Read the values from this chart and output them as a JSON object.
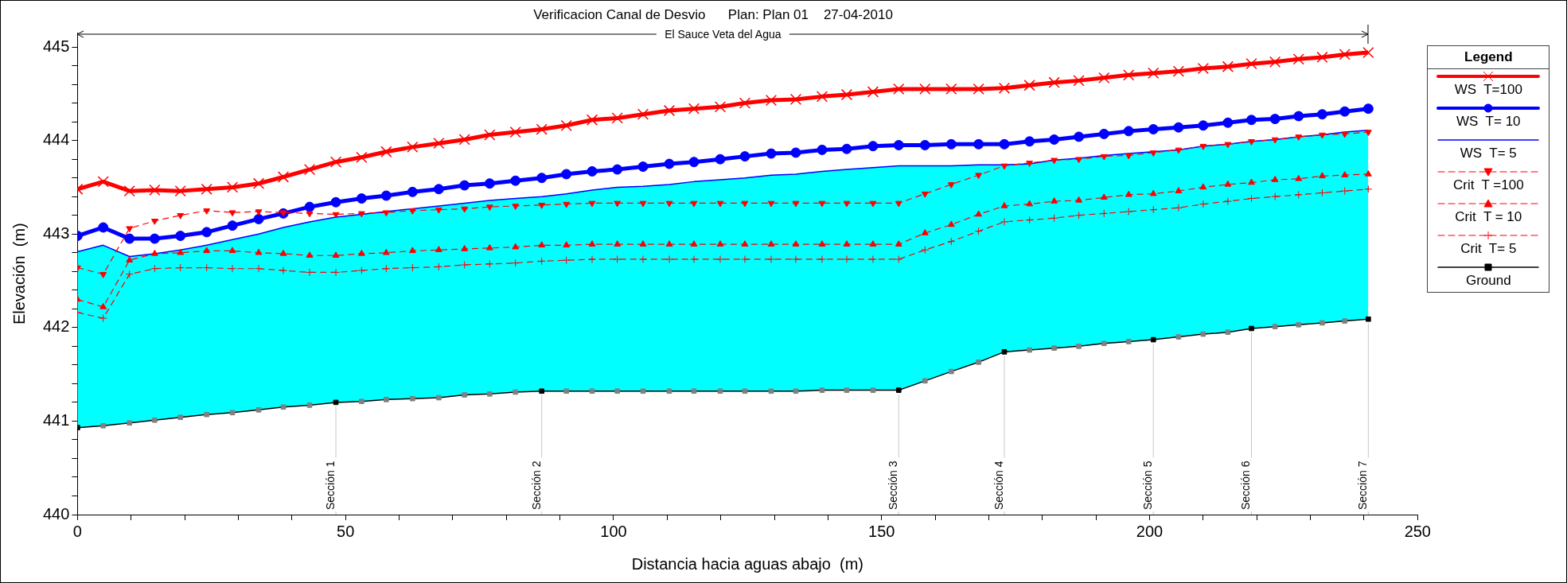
{
  "chart_data": {
    "type": "line",
    "title": "Verificacion Canal de Desvio      Plan: Plan 01    27-04-2010",
    "subtitle": "El Sauce Veta del Agua",
    "xlabel": "Distancia hacia aguas abajo  (m)",
    "ylabel": "Elevación  (m)",
    "legend_title": "Legend",
    "legend": "right",
    "grid": false,
    "x": [
      0,
      4.8,
      9.7,
      14.4,
      19.2,
      24.1,
      28.9,
      33.8,
      38.4,
      43.3,
      48.2,
      53.0,
      57.6,
      62.5,
      67.4,
      72.2,
      76.9,
      81.7,
      86.6,
      91.2,
      96.0,
      100.7,
      105.5,
      110.4,
      115.0,
      119.9,
      124.5,
      129.4,
      134.0,
      138.9,
      143.5,
      148.4,
      153.2,
      158.1,
      163.0,
      168.1,
      172.9,
      177.6,
      182.2,
      186.8,
      191.5,
      196.1,
      200.7,
      205.4,
      210.0,
      214.6,
      219.0,
      223.4,
      227.8,
      232.2,
      236.4,
      240.8
    ],
    "xlim": [
      0,
      250
    ],
    "xticks": [
      0,
      {
        "value": 10,
        "label": null
      },
      {
        "value": 20,
        "label": null
      },
      {
        "value": 30,
        "label": null
      },
      {
        "value": 40,
        "label": null
      },
      50,
      {
        "value": 60,
        "label": null
      },
      {
        "value": 70,
        "label": null
      },
      {
        "value": 80,
        "label": null
      },
      {
        "value": 90,
        "label": null
      },
      100,
      {
        "value": 110,
        "label": null
      },
      {
        "value": 120,
        "label": null
      },
      {
        "value": 130,
        "label": null
      },
      {
        "value": 140,
        "label": null
      },
      150,
      {
        "value": 160,
        "label": null
      },
      {
        "value": 170,
        "label": null
      },
      {
        "value": 180,
        "label": null
      },
      {
        "value": 190,
        "label": null
      },
      200,
      {
        "value": 210,
        "label": null
      },
      {
        "value": 220,
        "label": null
      },
      {
        "value": 230,
        "label": null
      },
      {
        "value": 240,
        "label": null
      },
      250
    ],
    "ylim": [
      440,
      445.15
    ],
    "yticks": [
      440,
      {
        "value": 440.2,
        "label": null
      },
      {
        "value": 440.4,
        "label": null
      },
      {
        "value": 440.6,
        "label": null
      },
      {
        "value": 440.8,
        "label": null
      },
      441,
      {
        "value": 441.2,
        "label": null
      },
      {
        "value": 441.4,
        "label": null
      },
      {
        "value": 441.6,
        "label": null
      },
      {
        "value": 441.8,
        "label": null
      },
      442,
      {
        "value": 442.2,
        "label": null
      },
      {
        "value": 442.4,
        "label": null
      },
      {
        "value": 442.6,
        "label": null
      },
      {
        "value": 442.8,
        "label": null
      },
      443,
      {
        "value": 443.2,
        "label": null
      },
      {
        "value": 443.4,
        "label": null
      },
      {
        "value": 443.6,
        "label": null
      },
      {
        "value": 443.8,
        "label": null
      },
      444,
      {
        "value": 444.2,
        "label": null
      },
      {
        "value": 444.4,
        "label": null
      },
      {
        "value": 444.6,
        "label": null
      },
      {
        "value": 444.8,
        "label": null
      },
      445
    ],
    "series": [
      {
        "name": "WS  T=100",
        "color": "#ff0000",
        "marker": "cross",
        "line_style": "solid",
        "values": [
          443.48,
          443.56,
          443.46,
          443.47,
          443.46,
          443.48,
          443.5,
          443.54,
          443.61,
          443.69,
          443.77,
          443.82,
          443.88,
          443.93,
          443.97,
          444.01,
          444.06,
          444.09,
          444.12,
          444.16,
          444.22,
          444.24,
          444.28,
          444.32,
          444.34,
          444.36,
          444.4,
          444.43,
          444.44,
          444.47,
          444.49,
          444.52,
          444.55,
          444.55,
          444.55,
          444.55,
          444.56,
          444.59,
          444.62,
          444.64,
          444.67,
          444.7,
          444.72,
          444.74,
          444.77,
          444.79,
          444.82,
          444.84,
          444.87,
          444.89,
          444.92,
          444.94
        ]
      },
      {
        "name": "WS  T= 10",
        "color": "#0000ff",
        "marker": "circle",
        "line_style": "solid",
        "values": [
          442.98,
          443.07,
          442.95,
          442.95,
          442.98,
          443.02,
          443.09,
          443.16,
          443.22,
          443.29,
          443.34,
          443.38,
          443.41,
          443.45,
          443.48,
          443.52,
          443.54,
          443.57,
          443.6,
          443.64,
          443.67,
          443.69,
          443.72,
          443.75,
          443.77,
          443.8,
          443.83,
          443.86,
          443.87,
          443.9,
          443.91,
          443.94,
          443.95,
          443.95,
          443.96,
          443.96,
          443.96,
          443.99,
          444.01,
          444.04,
          444.07,
          444.1,
          444.12,
          444.14,
          444.16,
          444.19,
          444.22,
          444.23,
          444.26,
          444.28,
          444.31,
          444.34
        ]
      },
      {
        "name": "WS  T= 5",
        "type": "area",
        "color": "#0000ff",
        "marker": "none",
        "line_style": "solid",
        "values": [
          442.81,
          442.88,
          442.76,
          442.79,
          442.83,
          442.88,
          442.94,
          443.0,
          443.07,
          443.13,
          443.18,
          443.21,
          443.24,
          443.27,
          443.3,
          443.33,
          443.36,
          443.38,
          443.4,
          443.43,
          443.47,
          443.5,
          443.51,
          443.53,
          443.56,
          443.58,
          443.6,
          443.63,
          443.64,
          443.67,
          443.69,
          443.71,
          443.73,
          443.73,
          443.73,
          443.74,
          443.74,
          443.75,
          443.79,
          443.81,
          443.84,
          443.86,
          443.88,
          443.9,
          443.94,
          443.96,
          443.99,
          444.01,
          444.04,
          444.06,
          444.09,
          444.11
        ]
      },
      {
        "name": "Crit  T =100",
        "color": "#ff0000",
        "marker": "triangle-down",
        "line_style": "dashed",
        "values": [
          442.64,
          442.57,
          443.06,
          443.14,
          443.2,
          443.25,
          443.23,
          443.24,
          443.23,
          443.22,
          443.21,
          443.22,
          443.23,
          443.25,
          443.26,
          443.27,
          443.29,
          443.3,
          443.31,
          443.32,
          443.33,
          443.33,
          443.33,
          443.33,
          443.33,
          443.33,
          443.33,
          443.33,
          443.33,
          443.33,
          443.33,
          443.33,
          443.33,
          443.43,
          443.53,
          443.63,
          443.73,
          443.76,
          443.79,
          443.8,
          443.83,
          443.84,
          443.87,
          443.9,
          443.94,
          443.96,
          443.99,
          444.01,
          444.04,
          444.06,
          444.07,
          444.09
        ]
      },
      {
        "name": "Crit  T = 10",
        "color": "#ff0000",
        "marker": "triangle",
        "line_style": "dashed",
        "values": [
          442.3,
          442.22,
          442.72,
          442.79,
          442.8,
          442.82,
          442.82,
          442.8,
          442.79,
          442.77,
          442.77,
          442.79,
          442.8,
          442.82,
          442.83,
          442.84,
          442.85,
          442.86,
          442.88,
          442.88,
          442.89,
          442.89,
          442.89,
          442.89,
          442.89,
          442.89,
          442.89,
          442.89,
          442.89,
          442.89,
          442.89,
          442.89,
          442.89,
          443.01,
          443.1,
          443.21,
          443.3,
          443.32,
          443.35,
          443.36,
          443.39,
          443.42,
          443.43,
          443.46,
          443.5,
          443.53,
          443.55,
          443.58,
          443.59,
          443.62,
          443.63,
          443.64
        ]
      },
      {
        "name": "Crit  T= 5",
        "color": "#ff0000",
        "marker": "plus",
        "line_style": "dashed",
        "values": [
          442.16,
          442.1,
          442.57,
          442.63,
          442.64,
          442.64,
          442.63,
          442.63,
          442.61,
          442.59,
          442.59,
          442.61,
          442.63,
          442.64,
          442.65,
          442.67,
          442.68,
          442.69,
          442.71,
          442.72,
          442.73,
          442.73,
          442.73,
          442.73,
          442.73,
          442.73,
          442.73,
          442.73,
          442.73,
          442.73,
          442.73,
          442.73,
          442.73,
          442.83,
          442.92,
          443.03,
          443.13,
          443.15,
          443.17,
          443.2,
          443.22,
          443.24,
          443.26,
          443.28,
          443.32,
          443.35,
          443.38,
          443.4,
          443.42,
          443.44,
          443.46,
          443.48
        ]
      },
      {
        "name": "Ground",
        "color": "#000000",
        "marker": "square",
        "line_style": "solid",
        "colors": [
          "#000000",
          "#808080",
          "#808080",
          "#808080",
          "#808080",
          "#808080",
          "#808080",
          "#808080",
          "#808080",
          "#808080",
          "#000000",
          "#808080",
          "#808080",
          "#808080",
          "#808080",
          "#808080",
          "#808080",
          "#808080",
          "#000000",
          "#808080",
          "#808080",
          "#808080",
          "#808080",
          "#808080",
          "#808080",
          "#808080",
          "#808080",
          "#808080",
          "#808080",
          "#808080",
          "#808080",
          "#808080",
          "#000000",
          "#808080",
          "#808080",
          "#808080",
          "#000000",
          "#808080",
          "#808080",
          "#808080",
          "#808080",
          "#808080",
          "#000000",
          "#808080",
          "#808080",
          "#808080",
          "#000000",
          "#808080",
          "#808080",
          "#808080",
          "#808080",
          "#000000"
        ],
        "values": [
          440.93,
          440.95,
          440.98,
          441.01,
          441.04,
          441.07,
          441.09,
          441.12,
          441.15,
          441.17,
          441.2,
          441.21,
          441.23,
          441.24,
          441.25,
          441.28,
          441.29,
          441.31,
          441.32,
          441.32,
          441.32,
          441.32,
          441.32,
          441.32,
          441.32,
          441.32,
          441.32,
          441.32,
          441.32,
          441.33,
          441.33,
          441.33,
          441.33,
          441.43,
          441.53,
          441.63,
          441.74,
          441.76,
          441.78,
          441.8,
          441.83,
          441.85,
          441.87,
          441.9,
          441.93,
          441.95,
          441.99,
          442.01,
          442.03,
          442.05,
          442.07,
          442.09
        ]
      }
    ],
    "ref_lines": [
      {
        "axis": "x",
        "value": 48.2,
        "label": "Sección 1",
        "color": "#c8c8c8"
      },
      {
        "axis": "x",
        "value": 86.6,
        "label": "Sección 2",
        "color": "#c8c8c8"
      },
      {
        "axis": "x",
        "value": 153.2,
        "label": "Sección 3",
        "color": "#c8c8c8"
      },
      {
        "axis": "x",
        "value": 172.9,
        "label": "Sección 4",
        "color": "#c8c8c8"
      },
      {
        "axis": "x",
        "value": 200.7,
        "label": "Sección 5",
        "color": "#c8c8c8"
      },
      {
        "axis": "x",
        "value": 219.0,
        "label": "Sección 6",
        "color": "#c8c8c8"
      },
      {
        "axis": "x",
        "value": 240.8,
        "label": "Sección 7",
        "color": "#c8c8c8"
      }
    ]
  }
}
